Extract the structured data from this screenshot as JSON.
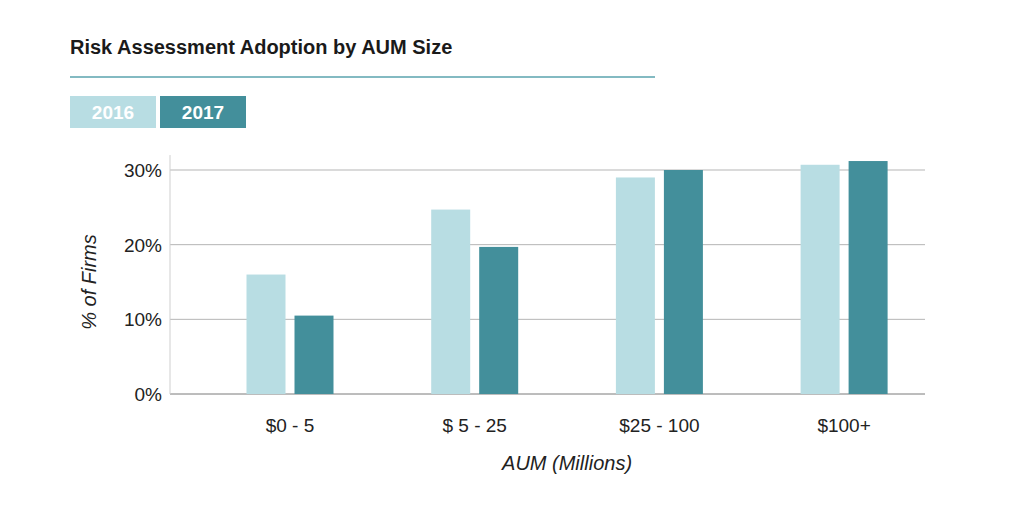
{
  "chart_data": {
    "type": "bar",
    "title": "Risk Assessment Adoption by AUM Size",
    "x_label": "AUM (Millions)",
    "y_label": "% of Firms",
    "categories": [
      "$0 - 5",
      "$ 5 - 25",
      "$25 - 100",
      "$100+"
    ],
    "series": [
      {
        "name": "2016",
        "color": "#b8dde3",
        "values": [
          16,
          24.7,
          29,
          30.7
        ]
      },
      {
        "name": "2017",
        "color": "#438f9b",
        "values": [
          10.5,
          19.7,
          30,
          31.2
        ]
      }
    ],
    "ylim": [
      0,
      32
    ],
    "yticks": [
      {
        "value": 0,
        "label": "0%"
      },
      {
        "value": 10,
        "label": "10%"
      },
      {
        "value": 20,
        "label": "20%"
      },
      {
        "value": 30,
        "label": "30%"
      }
    ],
    "grid": true,
    "legend": "top-left"
  }
}
